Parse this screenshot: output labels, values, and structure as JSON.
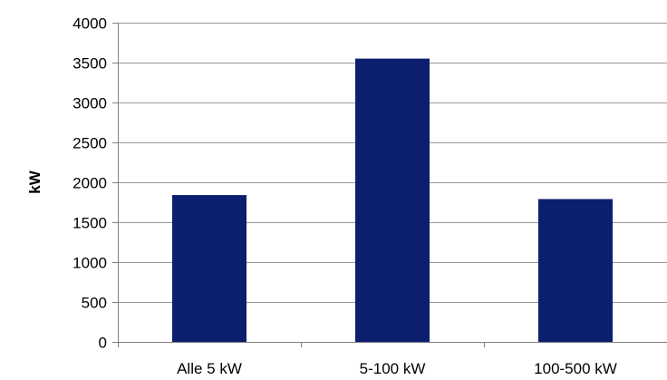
{
  "chart_data": {
    "type": "bar",
    "title": "",
    "xlabel": "",
    "ylabel": "kW",
    "categories": [
      "Alle 5 kW",
      "5-100 kW",
      "100-500 kW"
    ],
    "series": [
      {
        "values": [
          1840,
          3550,
          1790
        ]
      }
    ],
    "ylim": [
      0,
      4000
    ],
    "yticks": [
      0,
      500,
      1000,
      1500,
      2000,
      2500,
      3000,
      3500,
      4000
    ],
    "grid": true,
    "legend": "none"
  },
  "colors": {
    "bar": "#0c1f6e",
    "grid": "#9a9a9a",
    "axis": "#808080",
    "text": "#000000",
    "background": "#ffffff"
  }
}
